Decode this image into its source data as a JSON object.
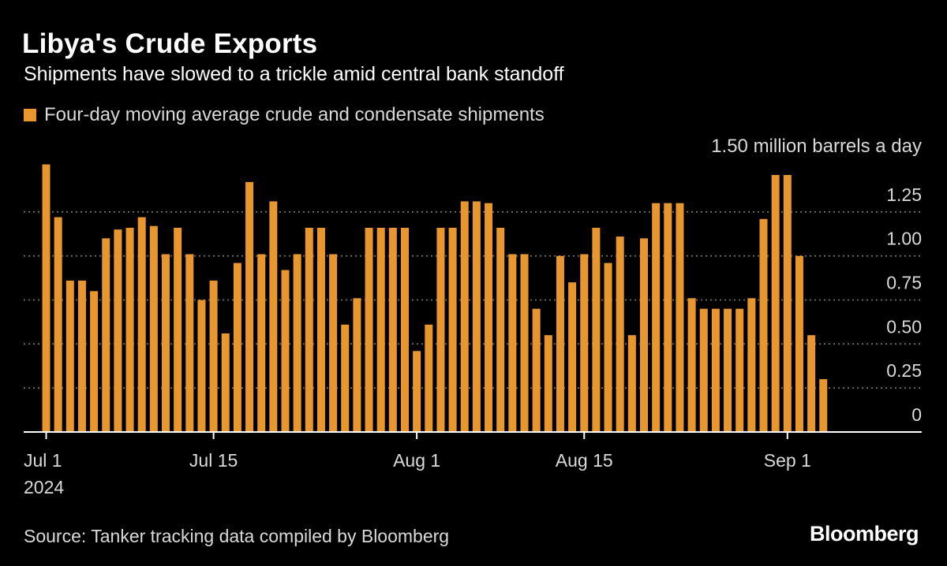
{
  "header": {
    "title": "Libya's Crude Exports",
    "subtitle": "Shipments have slowed to a trickle amid central bank standoff"
  },
  "footer": {
    "source": "Source: Tanker tracking data compiled by Bloomberg",
    "logo": "Bloomberg"
  },
  "colors": {
    "background": "#000000",
    "bar": "#e8962e",
    "gridline": "#7a7a7a",
    "axis": "#ffffff",
    "text": "#ffffff",
    "muted_text": "#d9d9d9"
  },
  "chart_data": {
    "type": "bar",
    "title": "Libya's Crude Exports",
    "subtitle": "Shipments have slowed to a trickle amid central bank standoff",
    "legend": [
      "Four-day moving average crude and condensate shipments"
    ],
    "legend_placement": "top-left",
    "unit_label": "1.50 million barrels a day",
    "xlabel": "",
    "ylabel": "million barrels a day",
    "ylim": [
      0,
      1.5
    ],
    "y_ticks": [
      0,
      0.25,
      0.5,
      0.75,
      1.0,
      1.25
    ],
    "y_tick_labels": [
      "0",
      "0.25",
      "0.50",
      "0.75",
      "1.00",
      "1.25"
    ],
    "y_axis_side": "right",
    "grid": true,
    "x_start": "2024-07-01",
    "x_ticks": [
      {
        "day": 0,
        "label": "Jul 1",
        "sublabel": "2024"
      },
      {
        "day": 14,
        "label": "Jul 15",
        "sublabel": ""
      },
      {
        "day": 31,
        "label": "Aug 1",
        "sublabel": ""
      },
      {
        "day": 45,
        "label": "Aug 15",
        "sublabel": ""
      },
      {
        "day": 62,
        "label": "Sep 1",
        "sublabel": ""
      }
    ],
    "series": [
      {
        "name": "Four-day moving average crude and condensate shipments",
        "values": [
          1.52,
          1.22,
          0.86,
          0.86,
          0.8,
          1.1,
          1.15,
          1.16,
          1.22,
          1.17,
          1.01,
          1.16,
          1.01,
          0.75,
          0.86,
          0.56,
          0.96,
          1.42,
          1.01,
          1.31,
          0.92,
          1.01,
          1.16,
          1.16,
          1.01,
          0.61,
          0.76,
          1.16,
          1.16,
          1.16,
          1.16,
          0.46,
          0.61,
          1.16,
          1.16,
          1.31,
          1.31,
          1.3,
          1.16,
          1.01,
          1.01,
          0.7,
          0.55,
          1.0,
          0.85,
          1.01,
          1.16,
          0.96,
          1.11,
          0.55,
          1.1,
          1.3,
          1.3,
          1.3,
          0.76,
          0.7,
          0.7,
          0.7,
          0.7,
          0.76,
          1.21,
          1.46,
          1.46,
          1.0,
          0.55,
          0.3
        ]
      }
    ]
  }
}
